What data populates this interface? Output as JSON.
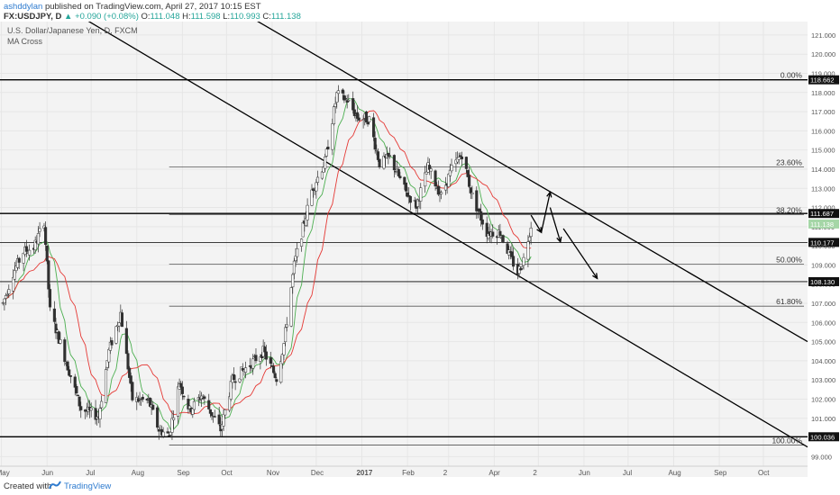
{
  "header": {
    "author": "ashddylan",
    "published_text": "published on TradingView.com, April 27, 2017 10:15 EST",
    "symbol": "FX:USDJPY, D",
    "change": "▲ +0.090 (+0.08%)",
    "o_label": "O:",
    "o_value": "111.048",
    "h_label": "H:",
    "h_value": "111.598",
    "l_label": "L:",
    "l_value": "110.993",
    "c_label": "C:",
    "c_value": "111.138"
  },
  "chart_meta": {
    "instrument": "U.S. Dollar/Japanese Yen, D, FXCM",
    "indicator": "MA Cross"
  },
  "footer": {
    "created_with": "Created with",
    "brand": "TradingView"
  },
  "colors": {
    "background": "#f3f3f3",
    "up_candle": "#ffffff",
    "down_candle": "#303030",
    "ma_fast": "#4caf50",
    "ma_slow": "#e53935",
    "price_label": "#ffffff",
    "current_price_bg": "#a5d6a7"
  },
  "chart_data": {
    "type": "candlestick",
    "title": "U.S. Dollar/Japanese Yen, D, FXCM",
    "ylim": [
      98.5,
      121.7
    ],
    "y_ticks": [
      99,
      100,
      101,
      102,
      103,
      104,
      105,
      106,
      107,
      108,
      109,
      110,
      111,
      112,
      113,
      114,
      115,
      116,
      117,
      118,
      119,
      120,
      121
    ],
    "y_tick_labels": [
      "99.000",
      "100.000",
      "101.000",
      "102.000",
      "103.000",
      "104.000",
      "105.000",
      "106.000",
      "107.000",
      "108.000",
      "109.000",
      "110.000",
      "111.000",
      "112.000",
      "113.000",
      "114.000",
      "115.000",
      "116.000",
      "117.000",
      "118.000",
      "119.000",
      "120.000",
      "121.000"
    ],
    "x_ticks": [
      {
        "label": "May",
        "date": "2016-05-01"
      },
      {
        "label": "Jun",
        "date": "2016-06-01"
      },
      {
        "label": "Jul",
        "date": "2016-07-01"
      },
      {
        "label": "Aug",
        "date": "2016-08-01"
      },
      {
        "label": "Sep",
        "date": "2016-09-01"
      },
      {
        "label": "Oct",
        "date": "2016-10-01"
      },
      {
        "label": "Nov",
        "date": "2016-11-01"
      },
      {
        "label": "Dec",
        "date": "2016-12-01"
      },
      {
        "label": "2017",
        "date": "2017-01-01"
      },
      {
        "label": "Feb",
        "date": "2017-02-01"
      },
      {
        "label": "2",
        "date": "2017-03-01"
      },
      {
        "label": "Apr",
        "date": "2017-04-01"
      },
      {
        "label": "2",
        "date": "2017-05-01"
      },
      {
        "label": "Jun",
        "date": "2017-06-01"
      },
      {
        "label": "Jul",
        "date": "2017-07-01"
      },
      {
        "label": "Aug",
        "date": "2017-08-01"
      },
      {
        "label": "Sep",
        "date": "2017-09-01"
      },
      {
        "label": "Oct",
        "date": "2017-10-01"
      }
    ],
    "x_range": [
      "2016-04-30",
      "2017-10-31"
    ],
    "price_path": [
      {
        "d": "2016-05-02",
        "p": 107.0
      },
      {
        "d": "2016-05-09",
        "p": 108.6
      },
      {
        "d": "2016-05-16",
        "p": 109.7
      },
      {
        "d": "2016-05-23",
        "p": 109.9
      },
      {
        "d": "2016-05-30",
        "p": 111.3
      },
      {
        "d": "2016-06-03",
        "p": 106.6
      },
      {
        "d": "2016-06-13",
        "p": 104.2
      },
      {
        "d": "2016-06-24",
        "p": 101.5
      },
      {
        "d": "2016-07-06",
        "p": 101.1
      },
      {
        "d": "2016-07-13",
        "p": 104.5
      },
      {
        "d": "2016-07-21",
        "p": 106.5
      },
      {
        "d": "2016-07-29",
        "p": 102.0
      },
      {
        "d": "2016-08-09",
        "p": 101.9
      },
      {
        "d": "2016-08-16",
        "p": 100.4
      },
      {
        "d": "2016-08-23",
        "p": 100.1
      },
      {
        "d": "2016-08-30",
        "p": 102.9
      },
      {
        "d": "2016-09-06",
        "p": 101.4
      },
      {
        "d": "2016-09-14",
        "p": 102.2
      },
      {
        "d": "2016-09-27",
        "p": 100.4
      },
      {
        "d": "2016-10-05",
        "p": 103.0
      },
      {
        "d": "2016-10-17",
        "p": 103.8
      },
      {
        "d": "2016-10-26",
        "p": 104.5
      },
      {
        "d": "2016-11-04",
        "p": 103.1
      },
      {
        "d": "2016-11-09",
        "p": 104.9
      },
      {
        "d": "2016-11-16",
        "p": 109.0
      },
      {
        "d": "2016-11-28",
        "p": 112.9
      },
      {
        "d": "2016-12-07",
        "p": 114.4
      },
      {
        "d": "2016-12-15",
        "p": 117.9
      },
      {
        "d": "2016-12-22",
        "p": 117.6
      },
      {
        "d": "2016-12-29",
        "p": 116.7
      },
      {
        "d": "2017-01-06",
        "p": 116.6
      },
      {
        "d": "2017-01-13",
        "p": 114.3
      },
      {
        "d": "2017-01-20",
        "p": 114.6
      },
      {
        "d": "2017-01-31",
        "p": 112.8
      },
      {
        "d": "2017-02-07",
        "p": 112.1
      },
      {
        "d": "2017-02-15",
        "p": 114.1
      },
      {
        "d": "2017-02-24",
        "p": 112.6
      },
      {
        "d": "2017-03-03",
        "p": 114.0
      },
      {
        "d": "2017-03-10",
        "p": 114.8
      },
      {
        "d": "2017-03-17",
        "p": 112.6
      },
      {
        "d": "2017-03-27",
        "p": 110.7
      },
      {
        "d": "2017-04-05",
        "p": 110.7
      },
      {
        "d": "2017-04-12",
        "p": 109.4
      },
      {
        "d": "2017-04-17",
        "p": 108.6
      },
      {
        "d": "2017-04-21",
        "p": 109.3
      },
      {
        "d": "2017-04-26",
        "p": 111.1
      }
    ],
    "horizontal_levels": [
      {
        "price": 118.662,
        "label": "118.662",
        "style": "strong"
      },
      {
        "price": 111.687,
        "label": "111.687",
        "style": "strong"
      },
      {
        "price": 110.177,
        "label": "110.177",
        "style": "normal"
      },
      {
        "price": 108.13,
        "label": "108.130",
        "style": "normal"
      },
      {
        "price": 100.036,
        "label": "100.036",
        "style": "strong"
      }
    ],
    "current_price": {
      "price": 111.138,
      "label": "111.138"
    },
    "fib_levels": [
      {
        "label": "0.00%",
        "price": 118.662
      },
      {
        "label": "23.60%",
        "price": 114.12
      },
      {
        "label": "38.20%",
        "price": 111.62
      },
      {
        "label": "50.00%",
        "price": 109.05
      },
      {
        "label": "61.80%",
        "price": 106.85
      },
      {
        "label": "100.00%",
        "price": 99.6
      }
    ],
    "channel_lines": [
      {
        "from": {
          "d": "2016-09-01",
          "p": 124.0
        },
        "to": {
          "d": "2017-10-31",
          "p": 105.0
        }
      },
      {
        "from": {
          "d": "2016-05-10",
          "p": 124.0
        },
        "to": {
          "d": "2017-10-31",
          "p": 99.5
        }
      }
    ],
    "projection_arrows": [
      {
        "from": {
          "d": "2017-04-26",
          "p": 111.6
        },
        "to": {
          "d": "2017-05-03",
          "p": 110.7
        }
      },
      {
        "from": {
          "d": "2017-05-03",
          "p": 110.7
        },
        "to": {
          "d": "2017-05-09",
          "p": 112.8
        }
      },
      {
        "from": {
          "d": "2017-05-09",
          "p": 112.0
        },
        "to": {
          "d": "2017-05-16",
          "p": 110.2
        }
      },
      {
        "from": {
          "d": "2017-05-18",
          "p": 110.9
        },
        "to": {
          "d": "2017-06-10",
          "p": 108.3
        }
      }
    ]
  }
}
